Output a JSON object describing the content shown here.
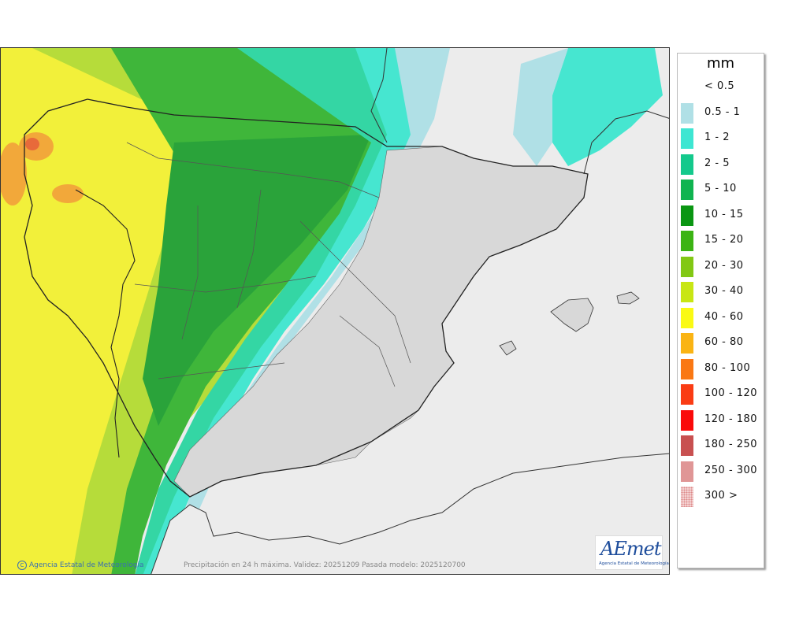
{
  "legend": {
    "title": "mm",
    "items": [
      {
        "label": "< 0.5",
        "color": "#ffffff"
      },
      {
        "label": "0.5 - 1",
        "color": "#b0e0e6"
      },
      {
        "label": "1 - 2",
        "color": "#3ee6d2"
      },
      {
        "label": "2 - 5",
        "color": "#14c98c"
      },
      {
        "label": "5 - 10",
        "color": "#10b450"
      },
      {
        "label": "10 - 15",
        "color": "#0a9612"
      },
      {
        "label": "15 - 20",
        "color": "#3cb414"
      },
      {
        "label": "20 - 30",
        "color": "#82c814"
      },
      {
        "label": "30 - 40",
        "color": "#c8e614"
      },
      {
        "label": "40 - 60",
        "color": "#fafa14"
      },
      {
        "label": "60 - 80",
        "color": "#fab414"
      },
      {
        "label": "80 - 100",
        "color": "#fa7814"
      },
      {
        "label": "100 - 120",
        "color": "#fa3c14"
      },
      {
        "label": "120 - 180",
        "color": "#fa0a0a"
      },
      {
        "label": "180 - 250",
        "color": "#c85050"
      },
      {
        "label": "250 - 300",
        "color": "#e09696"
      },
      {
        "label": "300 >",
        "color": "#f4d2d2"
      }
    ]
  },
  "footer": {
    "credit_symbol": "C",
    "credit": "Agencia Estatal de Meteorología",
    "caption": "Precipitación en 24 h máxima. Validez: 20251209 Pasada modelo: 2025120700"
  },
  "logo": {
    "word": "AEmet",
    "subtitle": "Agencia Estatal de Meteorología"
  },
  "colors": {
    "sea_background": "#ececec",
    "dry_land": "#d8d8d8",
    "border": "#222222"
  }
}
